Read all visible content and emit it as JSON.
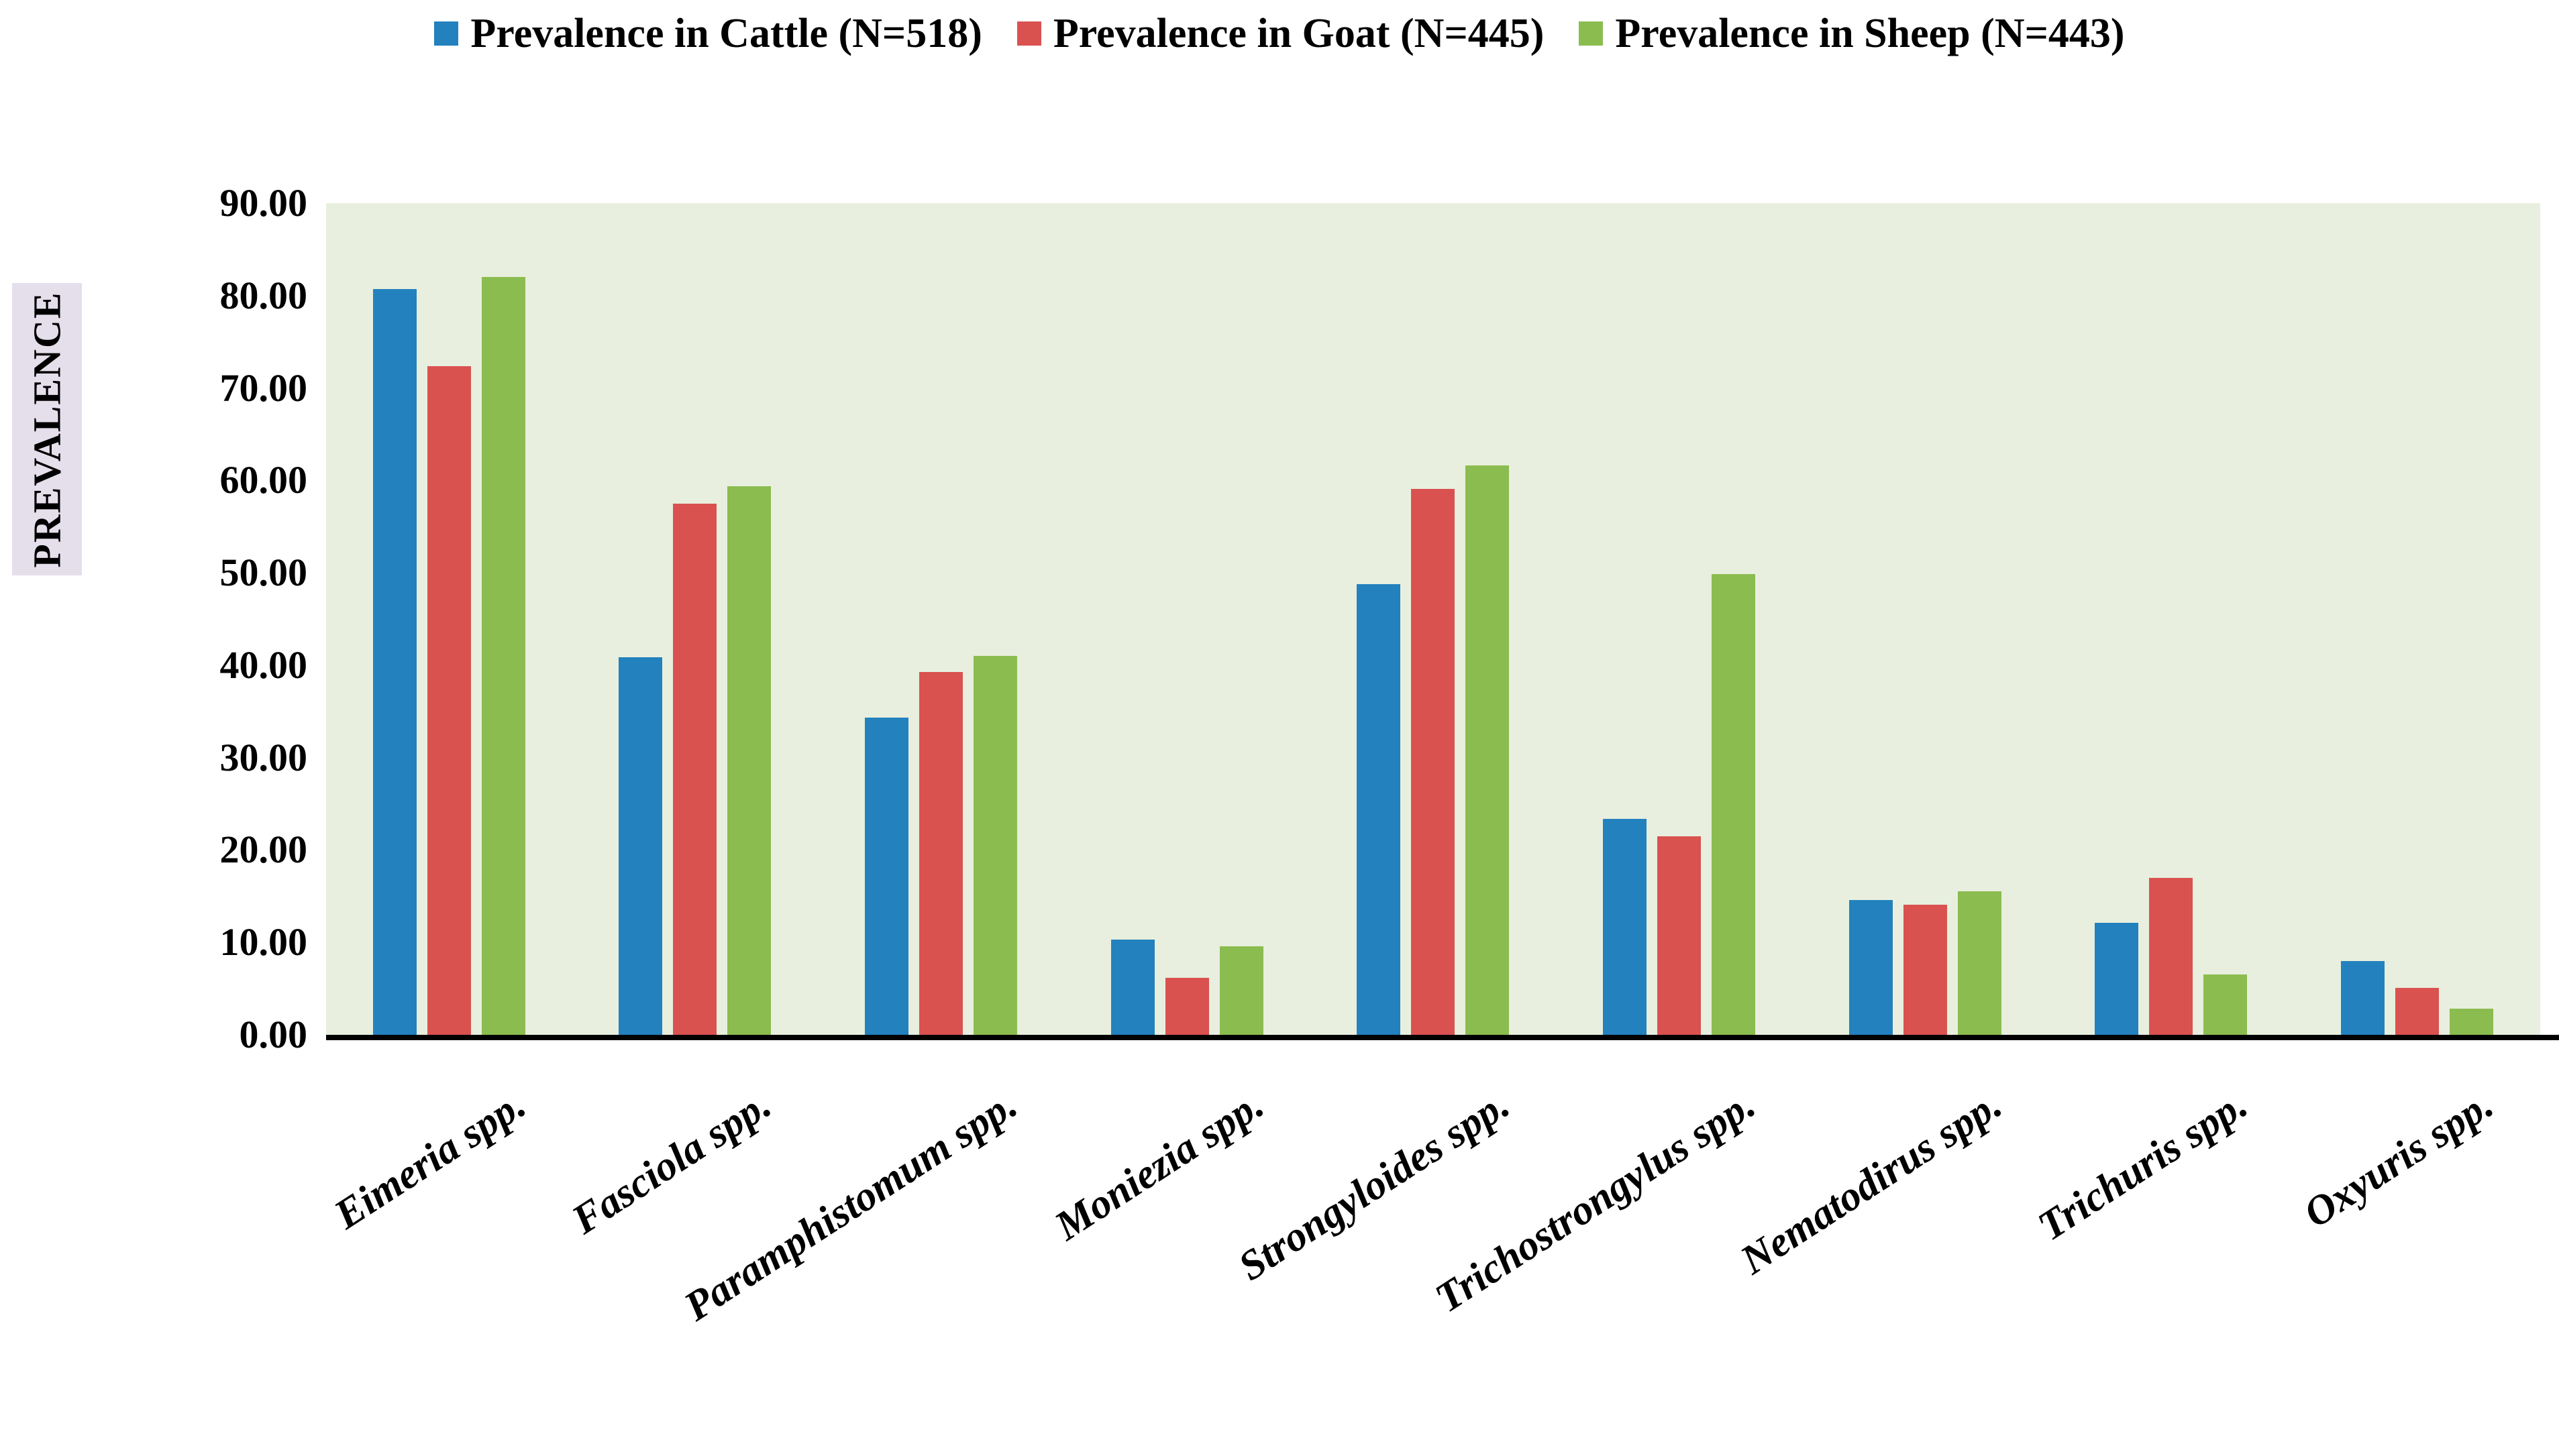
{
  "colors": {
    "cattle": "#2381BE",
    "goat": "#D95250",
    "sheep": "#8BBC50",
    "plot_bg": "#E8EFDE",
    "ylabel_bg": "#E5DFEC",
    "axis": "#000000"
  },
  "chart_data": {
    "type": "bar",
    "title": "",
    "xlabel": "",
    "ylabel": "PREVALENCE",
    "ylim": [
      0,
      90
    ],
    "ytick_step": 10,
    "ytick_labels": [
      "0.00",
      "10.00",
      "20.00",
      "30.00",
      "40.00",
      "50.00",
      "60.00",
      "70.00",
      "80.00",
      "90.00"
    ],
    "grid": false,
    "legend_position": "top",
    "categories": [
      "Eimeria spp.",
      "Fasciola spp.",
      "Paramphistomum spp.",
      "Moniezia spp.",
      "Strongyloides spp.",
      "Trichostrongylus spp.",
      "Nematodirus spp.",
      "Trichuris spp.",
      "Oxyuris spp."
    ],
    "series": [
      {
        "name": "Prevalence in Cattle (N=518)",
        "color_key": "cattle",
        "values": [
          80.7,
          40.9,
          34.3,
          10.3,
          48.8,
          23.4,
          14.6,
          12.1,
          8.0
        ]
      },
      {
        "name": "Prevalence in Goat (N=445)",
        "color_key": "goat",
        "values": [
          72.4,
          57.5,
          39.3,
          6.2,
          59.1,
          21.5,
          14.1,
          17.0,
          5.1
        ]
      },
      {
        "name": "Prevalence in Sheep (N=443)",
        "color_key": "sheep",
        "values": [
          82.0,
          59.4,
          41.0,
          9.6,
          61.6,
          49.9,
          15.5,
          6.5,
          2.8
        ]
      }
    ]
  }
}
